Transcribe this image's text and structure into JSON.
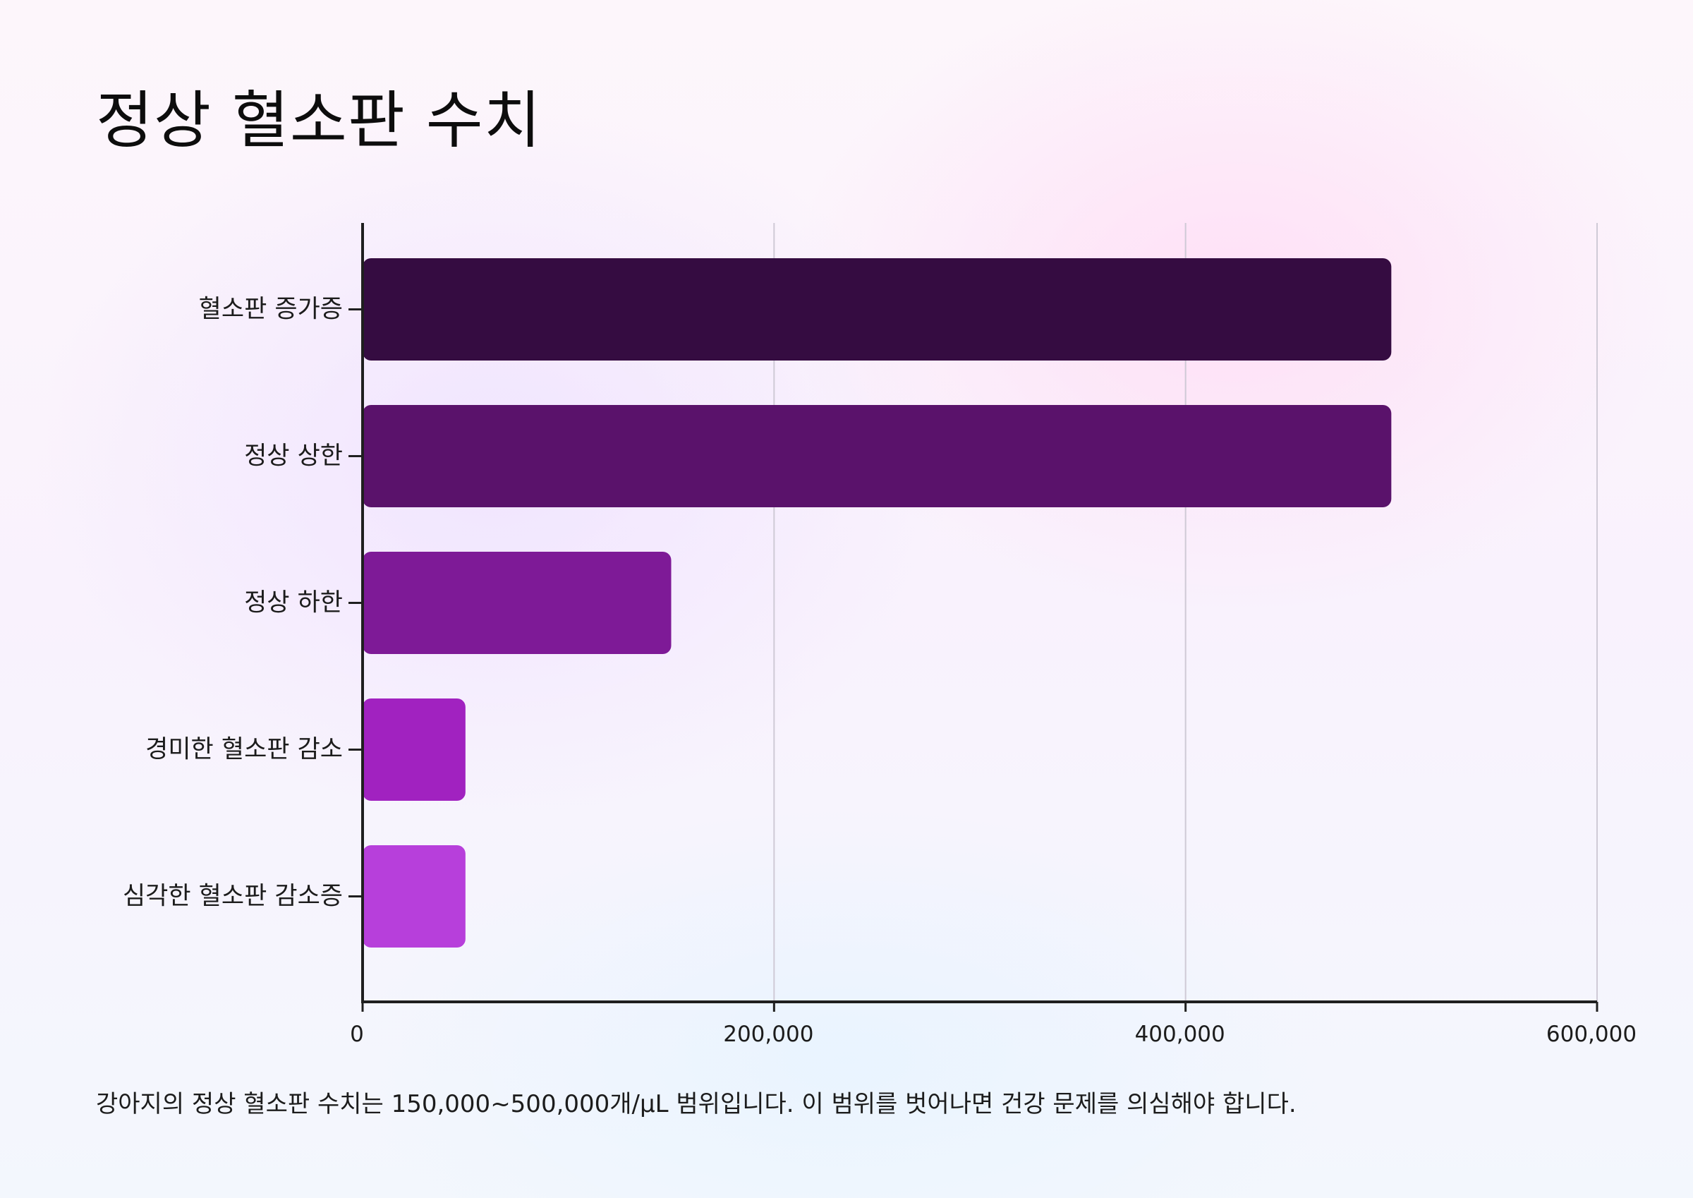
{
  "title": "정상 혈소판 수치",
  "caption": "강아지의 정상 혈소판 수치는 150,000~500,000개/µL 범위입니다. 이 범위를 벗어나면 건강 문제를 의심해야 합니다.",
  "chart_data": {
    "type": "bar",
    "orientation": "horizontal",
    "categories": [
      "혈소판 증가증",
      "정상 상한",
      "정상 하한",
      "경미한 혈소판 감소",
      "심각한 혈소판 감소증"
    ],
    "values": [
      500000,
      500000,
      150000,
      50000,
      50000
    ],
    "bar_colors": [
      "#350c41",
      "#5a126b",
      "#7e1a97",
      "#a122c0",
      "#b73fdb"
    ],
    "xlim": [
      0,
      600000
    ],
    "xticks": [
      0,
      200000,
      400000,
      600000
    ],
    "xtick_labels": [
      "0",
      "200,000",
      "400,000",
      "600,000"
    ],
    "grid": "vertical",
    "xlabel": "",
    "ylabel": ""
  }
}
